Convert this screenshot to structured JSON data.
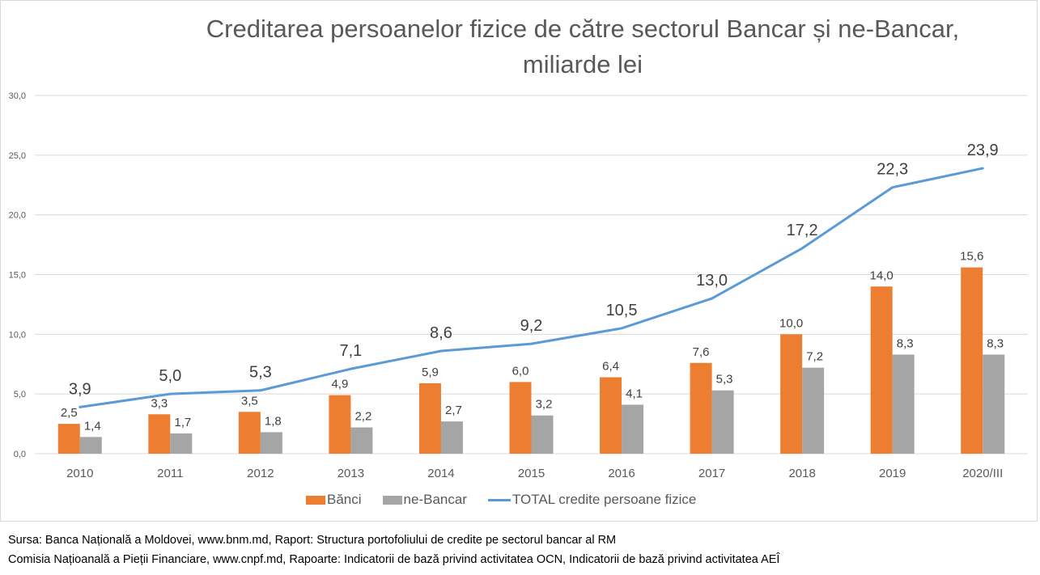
{
  "chart_data": {
    "type": "bar+line",
    "title_line1": "Creditarea persoanelor fizice de către sectorul Bancar și ne-Bancar,",
    "title_line2": "miliarde lei",
    "categories": [
      "2010",
      "2011",
      "2012",
      "2013",
      "2014",
      "2015",
      "2016",
      "2017",
      "2018",
      "2019",
      "2020/III"
    ],
    "series": [
      {
        "name": "Bănci",
        "type": "bar",
        "color": "#ed7d31",
        "values": [
          2.5,
          3.3,
          3.5,
          4.9,
          5.9,
          6.0,
          6.4,
          7.6,
          10.0,
          14.0,
          15.6
        ],
        "labels": [
          "2,5",
          "3,3",
          "3,5",
          "4,9",
          "5,9",
          "6,0",
          "6,4",
          "7,6",
          "10,0",
          "14,0",
          "15,6"
        ]
      },
      {
        "name": "ne-Bancar",
        "type": "bar",
        "color": "#a5a5a5",
        "values": [
          1.4,
          1.7,
          1.8,
          2.2,
          2.7,
          3.2,
          4.1,
          5.3,
          7.2,
          8.3,
          8.3
        ],
        "labels": [
          "1,4",
          "1,7",
          "1,8",
          "2,2",
          "2,7",
          "3,2",
          "4,1",
          "5,3",
          "7,2",
          "8,3",
          "8,3"
        ]
      },
      {
        "name": "TOTAL credite persoane fizice",
        "type": "line",
        "color": "#5b9bd5",
        "values": [
          3.9,
          5.0,
          5.3,
          7.1,
          8.6,
          9.2,
          10.5,
          13.0,
          17.2,
          22.3,
          23.9
        ],
        "labels": [
          "3,9",
          "5,0",
          "5,3",
          "7,1",
          "8,6",
          "9,2",
          "10,5",
          "13,0",
          "17,2",
          "22,3",
          "23,9"
        ]
      }
    ],
    "ylim": [
      0,
      30
    ],
    "yticks": [
      0,
      5,
      10,
      15,
      20,
      25,
      30
    ],
    "ytick_labels": [
      "0,0",
      "5,0",
      "10,0",
      "15,0",
      "20,0",
      "25,0",
      "30,0"
    ],
    "grid": true,
    "legend_position": "bottom",
    "xlabel": "",
    "ylabel": ""
  },
  "source": {
    "line1": "Sursa: Banca Națională a Moldovei, www.bnm.md, Raport: Structura portofoliului de credite pe sectorul bancar al RM",
    "line2": "Comisia Națioanală a Pieții Financiare, www.cnpf.md, Rapoarte: Indicatorii de bază privind activitatea OCN, Indicatorii de bază privind activitatea AEÎ"
  }
}
